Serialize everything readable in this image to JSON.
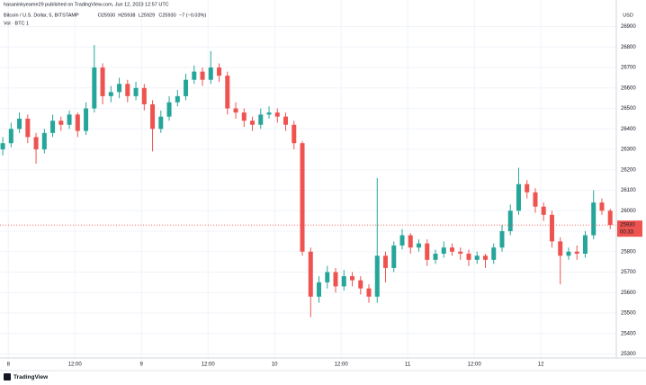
{
  "header": {
    "attribution": "hasaninkyeame29 published on TradingView.com, Jun 12, 2023 12:57 UTC",
    "brand": "TradingView"
  },
  "chart_data": {
    "type": "candlestick",
    "symbol": "Bitcoin / U.S. Dollar, 5, BITSTAMP",
    "ohlc_text": [
      "O25930",
      "H25938",
      "L25929",
      "C25930",
      "−7 (−0.03%)"
    ],
    "volume_label": "Vol · BTC  1",
    "currency": "USD",
    "countdown": "00:33",
    "up_color": "#26a69a",
    "down_color": "#ef5350",
    "grid": true,
    "xlim": [
      -1.5,
      109.6
    ],
    "xticks": [
      {
        "value": 0,
        "label": "8"
      },
      {
        "value": 12,
        "label": "12:00"
      },
      {
        "value": 24,
        "label": "9"
      },
      {
        "value": 36,
        "label": "12:00"
      },
      {
        "value": 48,
        "label": "10"
      },
      {
        "value": 60,
        "label": "12:00"
      },
      {
        "value": 72,
        "label": "11"
      },
      {
        "value": 84,
        "label": "12:00"
      },
      {
        "value": 96,
        "label": "12"
      }
    ],
    "ylim": [
      25280,
      27030
    ],
    "yticks": [
      25300,
      25400,
      25500,
      25600,
      25700,
      25800,
      25900,
      26000,
      26100,
      26200,
      26300,
      26400,
      26500,
      26600,
      26700,
      26800,
      26900
    ],
    "x": [
      -1,
      0.5,
      2,
      3.5,
      5,
      6.5,
      8,
      9.5,
      11,
      12.5,
      14,
      15.5,
      17,
      18.5,
      20,
      21.5,
      23,
      24.5,
      26,
      27.5,
      29,
      30.5,
      32,
      33.5,
      35,
      36.5,
      38,
      39.5,
      41,
      42.5,
      44,
      45.5,
      47,
      48.5,
      50,
      51.5,
      53,
      54.5,
      56,
      57.5,
      59,
      60.5,
      62,
      63.5,
      65,
      66.5,
      68,
      69.5,
      71,
      72.5,
      74,
      75.5,
      77,
      78.5,
      80,
      81.5,
      83,
      84.5,
      86,
      87.5,
      89,
      90.5,
      92,
      93.5,
      95,
      96.5,
      98,
      99.5,
      101,
      102.5,
      104,
      105.5,
      107,
      108.5
    ],
    "open": [
      26300,
      26330,
      26400,
      26450,
      26360,
      26300,
      26380,
      26440,
      26420,
      26470,
      26390,
      26500,
      26700,
      26560,
      26580,
      26620,
      26560,
      26600,
      26520,
      26400,
      26460,
      26530,
      26560,
      26640,
      26680,
      26640,
      26700,
      26660,
      26500,
      26480,
      26440,
      26420,
      26470,
      26480,
      26460,
      26420,
      26330,
      25800,
      25580,
      25650,
      25700,
      25630,
      25680,
      25660,
      25620,
      25580,
      25780,
      25720,
      25830,
      25880,
      25820,
      25840,
      25760,
      25790,
      25820,
      25800,
      25790,
      25760,
      25780,
      25760,
      25820,
      25900,
      26000,
      26130,
      26090,
      26020,
      25980,
      25850,
      25780,
      25800,
      25790,
      25880,
      26040,
      26000
    ],
    "high": [
      26360,
      26430,
      26480,
      26470,
      26380,
      26400,
      26470,
      26460,
      26490,
      26480,
      26530,
      26810,
      26720,
      26610,
      26650,
      26640,
      26630,
      26620,
      26540,
      26490,
      26560,
      26590,
      26670,
      26710,
      26700,
      26780,
      26720,
      26680,
      26530,
      26500,
      26460,
      26500,
      26510,
      26500,
      26480,
      26440,
      26340,
      25820,
      25680,
      25730,
      25720,
      25710,
      25700,
      25680,
      25640,
      26160,
      25800,
      25850,
      25910,
      25890,
      25860,
      25860,
      25810,
      25850,
      25840,
      25820,
      25810,
      25800,
      25790,
      25840,
      25930,
      26030,
      26210,
      26150,
      26110,
      26040,
      26000,
      25870,
      25820,
      25830,
      25900,
      26100,
      26060,
      26010
    ],
    "low": [
      26270,
      26310,
      26380,
      26330,
      26230,
      26280,
      26360,
      26390,
      26400,
      26360,
      26370,
      26480,
      26520,
      26530,
      26550,
      26530,
      26540,
      26490,
      26290,
      26380,
      26440,
      26510,
      26540,
      26620,
      26610,
      26620,
      26630,
      26470,
      26450,
      26410,
      26390,
      26400,
      26450,
      26430,
      26390,
      26300,
      25780,
      25480,
      25550,
      25620,
      25600,
      25610,
      25630,
      25590,
      25550,
      25550,
      25650,
      25700,
      25810,
      25790,
      25800,
      25730,
      25740,
      25770,
      25780,
      25760,
      25730,
      25740,
      25720,
      25740,
      25800,
      25880,
      25980,
      26060,
      25990,
      25950,
      25820,
      25640,
      25760,
      25760,
      25770,
      25860,
      25980,
      25910
    ],
    "close": [
      26330,
      26400,
      26450,
      26360,
      26300,
      26380,
      26440,
      26420,
      26470,
      26390,
      26500,
      26700,
      26560,
      26580,
      26620,
      26560,
      26600,
      26520,
      26400,
      26460,
      26530,
      26560,
      26640,
      26680,
      26640,
      26700,
      26660,
      26500,
      26480,
      26440,
      26420,
      26470,
      26480,
      26460,
      26420,
      26330,
      25800,
      25580,
      25650,
      25700,
      25630,
      25680,
      25660,
      25620,
      25580,
      25780,
      25720,
      25830,
      25880,
      25820,
      25840,
      25760,
      25790,
      25820,
      25800,
      25790,
      25760,
      25780,
      25760,
      25820,
      25900,
      26000,
      26130,
      26090,
      26020,
      25980,
      25850,
      25780,
      25800,
      25790,
      25880,
      26040,
      26000,
      25930
    ]
  }
}
